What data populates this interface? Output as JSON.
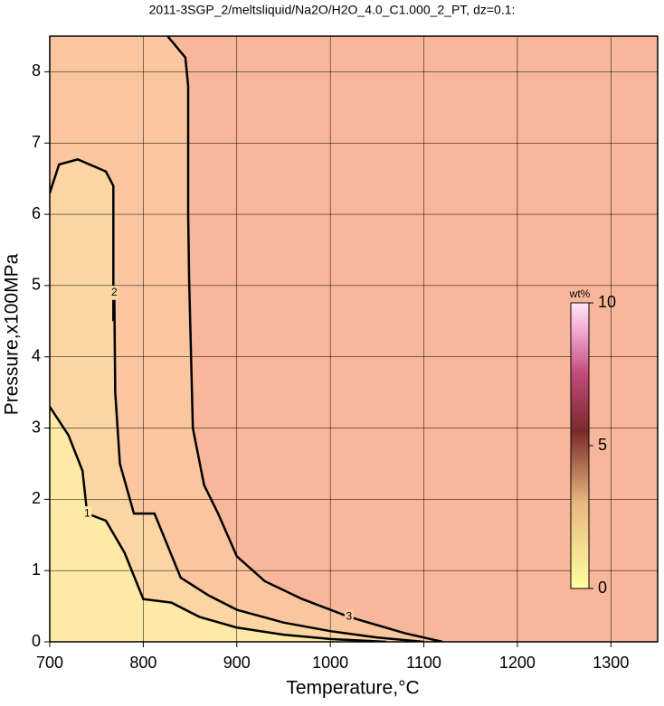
{
  "chart_data": {
    "type": "contour",
    "title": "2011-3SGP_2/meltsliquid/Na2O/H2O_4.0_C1.000_2_PT, dz=0.1:",
    "x_label": "Temperature,°C",
    "y_label": "Pressure,x100MPa",
    "xlim": [
      700,
      1350
    ],
    "ylim": [
      0,
      8.5
    ],
    "xticks": [
      700,
      800,
      900,
      1000,
      1100,
      1200,
      1300
    ],
    "yticks": [
      0,
      1,
      2,
      3,
      4,
      5,
      6,
      7,
      8
    ],
    "grid": true,
    "background": "#f8b79b",
    "contours": [
      {
        "level": 3,
        "fill": "#fac6a0",
        "label_at": 11,
        "x": [
          826,
          845,
          848,
          848,
          849,
          853,
          865,
          880,
          900,
          930,
          970,
          1020,
          1080,
          1120
        ],
        "y": [
          8.5,
          8.2,
          7.8,
          6,
          5.1,
          3,
          2.2,
          1.8,
          1.2,
          0.85,
          0.6,
          0.35,
          0.12,
          0
        ]
      },
      {
        "level": 2,
        "fill": "#fbd6a2",
        "label_at": 7,
        "x": [
          700,
          710,
          730,
          760,
          768,
          768,
          768,
          769,
          770,
          775,
          790,
          812,
          840,
          870,
          900,
          950,
          1000,
          1050,
          1100
        ],
        "y": [
          6.3,
          6.7,
          6.77,
          6.6,
          6.4,
          5.5,
          4.5,
          4.9,
          3.5,
          2.5,
          1.8,
          1.8,
          0.9,
          0.65,
          0.45,
          0.27,
          0.15,
          0.06,
          0
        ]
      },
      {
        "level": 1,
        "fill": "#fdeaa6",
        "label_at": 3,
        "x": [
          700,
          720,
          735,
          740,
          760,
          780,
          800,
          830,
          860,
          900,
          950,
          1000,
          1060
        ],
        "y": [
          3.3,
          2.9,
          2.4,
          1.8,
          1.7,
          1.25,
          0.6,
          0.55,
          0.35,
          0.2,
          0.1,
          0.04,
          0
        ]
      }
    ],
    "colorbar": {
      "label": "wt%",
      "lim": [
        0,
        10
      ],
      "ticks": [
        0,
        5,
        10
      ]
    }
  }
}
